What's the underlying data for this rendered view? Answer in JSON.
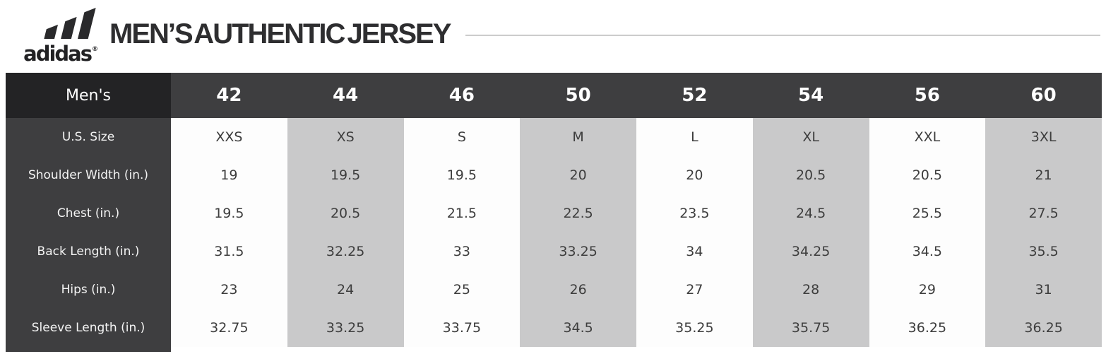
{
  "header": {
    "brand": "adidas",
    "registered_mark": "®",
    "title": "MEN’S AUTHENTIC JERSEY"
  },
  "colors": {
    "corner_cell_bg": "#232325",
    "dark_header_bg": "#3e3e40",
    "shaded_column_bg": "#c9c9ca",
    "white_column_bg": "#fdfdfd",
    "divider_line": "#cccccc",
    "title_text": "#2e2e30",
    "logo_black": "#2a2a2c"
  },
  "chart_data": {
    "type": "table",
    "title": "MEN’S AUTHENTIC JERSEY",
    "corner_label": "Men's",
    "columns": [
      "Men's",
      "42",
      "44",
      "46",
      "50",
      "52",
      "54",
      "56",
      "60"
    ],
    "shaded_size_columns": [
      "44",
      "50",
      "54",
      "60"
    ],
    "rows": [
      {
        "label": "U.S. Size",
        "values": [
          "XXS",
          "XS",
          "S",
          "M",
          "L",
          "XL",
          "XXL",
          "3XL"
        ]
      },
      {
        "label": "Shoulder Width (in.)",
        "values": [
          "19",
          "19.5",
          "19.5",
          "20",
          "20",
          "20.5",
          "20.5",
          "21"
        ]
      },
      {
        "label": "Chest (in.)",
        "values": [
          "19.5",
          "20.5",
          "21.5",
          "22.5",
          "23.5",
          "24.5",
          "25.5",
          "27.5"
        ]
      },
      {
        "label": "Back Length (in.)",
        "values": [
          "31.5",
          "32.25",
          "33",
          "33.25",
          "34",
          "34.25",
          "34.5",
          "35.5"
        ]
      },
      {
        "label": "Hips (in.)",
        "values": [
          "23",
          "24",
          "25",
          "26",
          "27",
          "28",
          "29",
          "31"
        ]
      },
      {
        "label": "Sleeve Length (in.)",
        "values": [
          "32.75",
          "33.25",
          "33.75",
          "34.5",
          "35.25",
          "35.75",
          "36.25",
          "36.25"
        ]
      }
    ]
  }
}
